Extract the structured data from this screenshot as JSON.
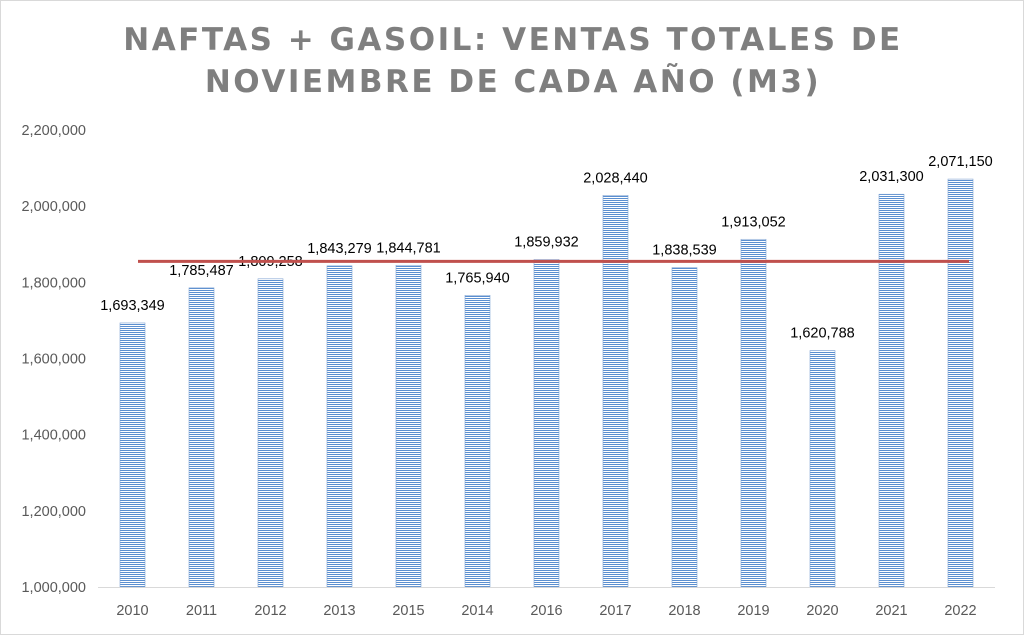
{
  "chart_data": {
    "type": "bar",
    "title_lines": [
      "NAFTAS + GASOIL: VENTAS TOTALES DE",
      "NOVIEMBRE DE CADA AÑO (M3)"
    ],
    "categories": [
      "2010",
      "2011",
      "2012",
      "2013",
      "2015",
      "2014",
      "2016",
      "2017",
      "2018",
      "2019",
      "2020",
      "2021",
      "2022"
    ],
    "values": [
      1693349,
      1785487,
      1809258,
      1843279,
      1844781,
      1765940,
      1859932,
      2028440,
      1838539,
      1913052,
      1620788,
      2031300,
      2071150
    ],
    "data_labels": [
      "1,693,349",
      "1,785,487",
      "1,809,258",
      "1,843,279",
      "1,844,781",
      "1,765,940",
      "1,859,932",
      "2,028,440",
      "1,838,539",
      "1,913,052",
      "1,620,788",
      "2,031,300",
      "2,071,150"
    ],
    "yticks": [
      1000000,
      1200000,
      1400000,
      1600000,
      1800000,
      2000000,
      2200000
    ],
    "ytick_labels": [
      "1,000,000",
      "1,200,000",
      "1,400,000",
      "1,600,000",
      "1,800,000",
      "2,000,000",
      "2,200,000"
    ],
    "ylim": [
      1000000,
      2200000
    ],
    "reference_line": {
      "value": 1855000,
      "color": "#c0504d"
    },
    "bar_color": "#4f81bd",
    "xlabel": "",
    "ylabel": "",
    "grid": false,
    "legend": "none"
  }
}
